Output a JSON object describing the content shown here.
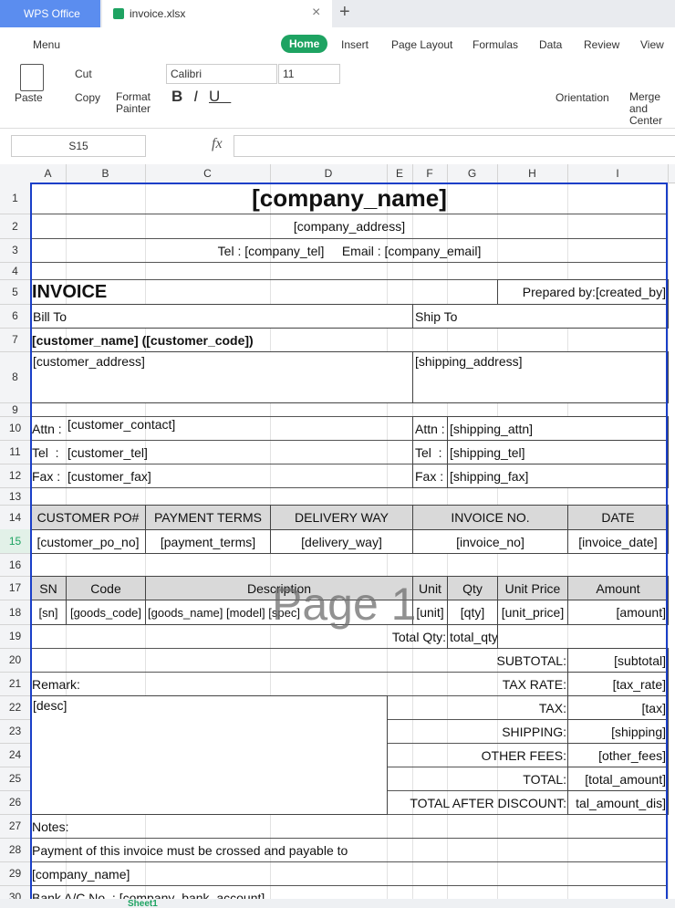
{
  "tabs": {
    "app": "WPS Office",
    "file": "invoice.xlsx"
  },
  "menu": [
    "Menu",
    "Home",
    "Insert",
    "Page Layout",
    "Formulas",
    "Data",
    "Review",
    "View"
  ],
  "toolbar": {
    "paste": "Paste",
    "cut": "Cut",
    "copy": "Copy",
    "format_painter": "Format Painter",
    "font": "Calibri",
    "size": "11",
    "orientation": "Orientation",
    "merge": "Merge and Center"
  },
  "formula_bar": {
    "name_box": "S15",
    "fx": "fx"
  },
  "columns": [
    "A",
    "B",
    "C",
    "D",
    "E",
    "F",
    "G",
    "H",
    "I"
  ],
  "rows": [
    "1",
    "2",
    "3",
    "4",
    "5",
    "6",
    "7",
    "8",
    "9",
    "10",
    "11",
    "12",
    "13",
    "14",
    "15",
    "16",
    "17",
    "18",
    "19",
    "20",
    "21",
    "22",
    "23",
    "24",
    "25",
    "26",
    "27",
    "28",
    "29",
    "30"
  ],
  "cells": [
    "[company_name]",
    "[company_address]",
    "Tel : [company_tel]     Email : [company_email]",
    "INVOICE",
    "Prepared by:[created_by]",
    "Bill To",
    "Ship To",
    "[customer_name] ([customer_code])",
    "[customer_address]",
    "[shipping_address]",
    "Attn :",
    "[customer_contact]",
    "Attn :",
    "[shipping_attn]",
    "Tel  :",
    "[customer_tel]",
    "Tel  :",
    "[shipping_tel]",
    "Fax :",
    "[customer_fax]",
    "Fax :",
    "[shipping_fax]",
    "CUSTOMER PO#",
    "PAYMENT TERMS",
    "DELIVERY WAY",
    "INVOICE NO.",
    "DATE",
    "[customer_po_no]",
    "[payment_terms]",
    "[delivery_way]",
    "[invoice_no]",
    "[invoice_date]",
    "SN",
    "Code",
    "Description",
    "Unit",
    "Qty",
    "Unit Price",
    "Amount",
    "[sn]",
    "[goods_code]",
    "[goods_name] [model] [spec]",
    "[unit]",
    "[qty]",
    "[unit_price]",
    "[amount]",
    "Total Qty:",
    "total_qty",
    "SUBTOTAL:",
    "[subtotal]",
    "Remark:",
    "TAX RATE:",
    "[tax_rate]",
    "[desc]",
    "TAX:",
    "[tax]",
    "SHIPPING:",
    "[shipping]",
    "OTHER FEES:",
    "[other_fees]",
    "TOTAL:",
    "[total_amount]",
    "TOTAL AFTER DISCOUNT:",
    "tal_amount_dis]",
    "Notes:",
    "Payment of this invoice must be crossed and payable to",
    "[company_name]",
    "Bank A/C No. : [company_bank_account]"
  ],
  "watermark": "Page 1",
  "sheet_tab": "Sheet1"
}
